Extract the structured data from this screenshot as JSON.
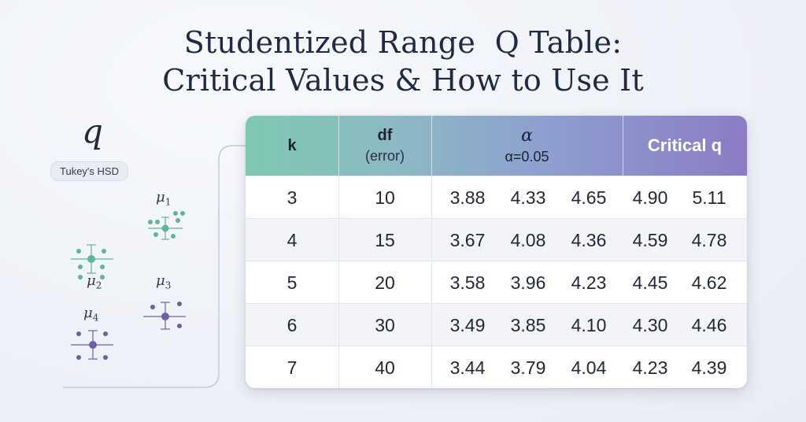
{
  "title": {
    "line1": "Studentized Range  Q Table:",
    "line2": "Critical Values & How to Use It"
  },
  "illustration": {
    "q_symbol": "q",
    "badge": "Tukey's HSD",
    "means": [
      {
        "base": "μ",
        "sub": "1"
      },
      {
        "base": "μ",
        "sub": "2"
      },
      {
        "base": "μ",
        "sub": "3"
      },
      {
        "base": "μ",
        "sub": "4"
      }
    ],
    "colors": {
      "green": "#5fb49a",
      "purple": "#6e5fa8",
      "connector": "#c3ccd8"
    }
  },
  "table": {
    "headers": {
      "k": "k",
      "df_main": "df",
      "df_sub": "(error)",
      "alpha_main": "α",
      "alpha_sub": "α=0.05",
      "critical": "Critical q"
    },
    "rows": [
      {
        "k": "3",
        "df": "10",
        "values": [
          "3.88",
          "4.33",
          "4.65",
          "4.90",
          "5.11"
        ]
      },
      {
        "k": "4",
        "df": "15",
        "values": [
          "3.67",
          "4.08",
          "4.36",
          "4.59",
          "4.78"
        ]
      },
      {
        "k": "5",
        "df": "20",
        "values": [
          "3.58",
          "3.96",
          "4.23",
          "4.45",
          "4.62"
        ]
      },
      {
        "k": "6",
        "df": "30",
        "values": [
          "3.49",
          "3.85",
          "4.10",
          "4.30",
          "4.46"
        ]
      },
      {
        "k": "7",
        "df": "40",
        "values": [
          "3.44",
          "3.79",
          "4.04",
          "4.23",
          "4.39"
        ]
      }
    ]
  }
}
